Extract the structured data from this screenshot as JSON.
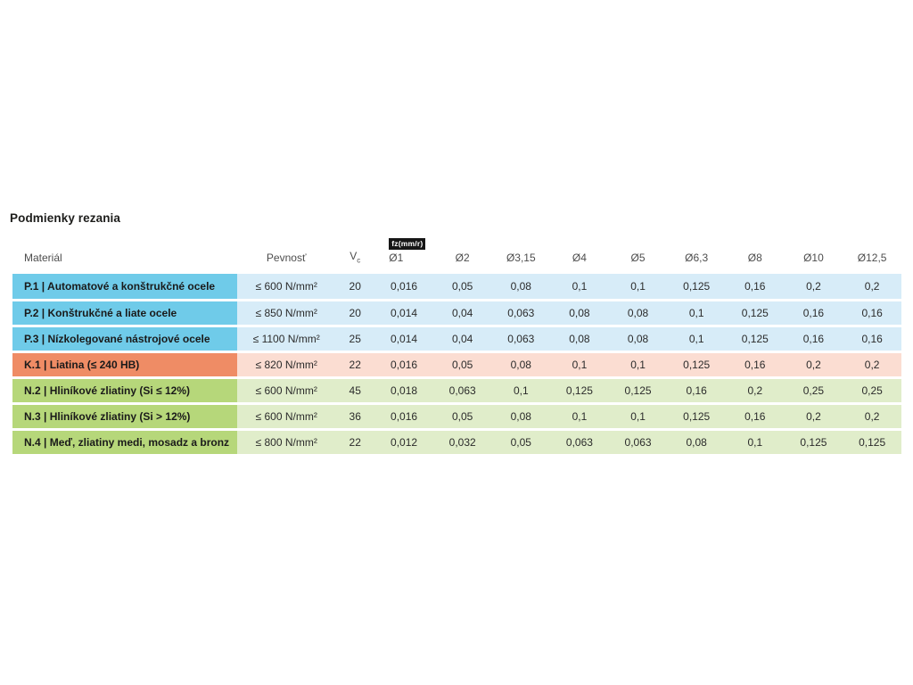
{
  "page_title": "Podmienky rezania",
  "table": {
    "feed_unit_badge": "fz(mm/r)",
    "headers": {
      "material": "Materiál",
      "strength": "Pevnosť",
      "vc_base": "V",
      "vc_sub": "c",
      "diameters": [
        "Ø1",
        "Ø2",
        "Ø3,15",
        "Ø4",
        "Ø5",
        "Ø6,3",
        "Ø8",
        "Ø10",
        "Ø12,5"
      ]
    },
    "rows": [
      {
        "material": "P.1 | Automatové a konštrukčné ocele",
        "strength": "≤ 600 N/mm²",
        "vc": "20",
        "values": [
          "0,016",
          "0,05",
          "0,08",
          "0,1",
          "0,1",
          "0,125",
          "0,16",
          "0,2",
          "0,2"
        ]
      },
      {
        "material": "P.2 | Konštrukčné a liate ocele",
        "strength": "≤ 850 N/mm²",
        "vc": "20",
        "values": [
          "0,014",
          "0,04",
          "0,063",
          "0,08",
          "0,08",
          "0,1",
          "0,125",
          "0,16",
          "0,16"
        ]
      },
      {
        "material": "P.3 | Nízkolegované nástrojové ocele",
        "strength": "≤ 1100 N/mm²",
        "vc": "25",
        "values": [
          "0,014",
          "0,04",
          "0,063",
          "0,08",
          "0,08",
          "0,1",
          "0,125",
          "0,16",
          "0,16"
        ]
      },
      {
        "material": "K.1 | Liatina (≤ 240 HB)",
        "strength": "≤ 820 N/mm²",
        "vc": "22",
        "values": [
          "0,016",
          "0,05",
          "0,08",
          "0,1",
          "0,1",
          "0,125",
          "0,16",
          "0,2",
          "0,2"
        ]
      },
      {
        "material": "N.2 | Hliníkové zliatiny (Si ≤ 12%)",
        "strength": "≤ 600 N/mm²",
        "vc": "45",
        "values": [
          "0,018",
          "0,063",
          "0,1",
          "0,125",
          "0,125",
          "0,16",
          "0,2",
          "0,25",
          "0,25"
        ]
      },
      {
        "material": "N.3 | Hliníkové zliatiny (Si > 12%)",
        "strength": "≤ 600 N/mm²",
        "vc": "36",
        "values": [
          "0,016",
          "0,05",
          "0,08",
          "0,1",
          "0,1",
          "0,125",
          "0,16",
          "0,2",
          "0,2"
        ]
      },
      {
        "material": "N.4 | Meď, zliatiny medi, mosadz a bronz",
        "strength": "≤ 800 N/mm²",
        "vc": "22",
        "values": [
          "0,012",
          "0,032",
          "0,05",
          "0,063",
          "0,063",
          "0,08",
          "0,1",
          "0,125",
          "0,125"
        ]
      }
    ],
    "colors": {
      "steel_label_bg": "#6FCBE9",
      "steel_row_bg": "#D7ECF8",
      "cast_iron_label_bg": "#EF8C65",
      "cast_iron_row_bg": "#FBDDD2",
      "nonferrous_label_bg": "#B6D77A",
      "nonferrous_row_bg": "#E0EDCA"
    }
  }
}
